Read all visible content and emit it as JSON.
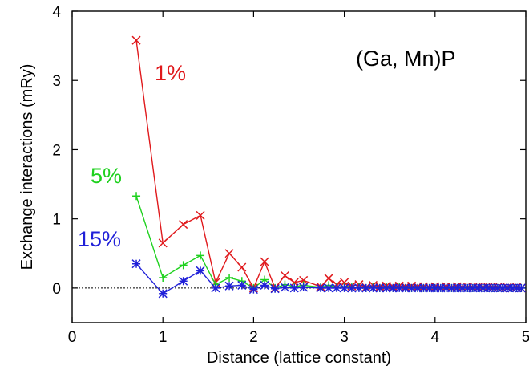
{
  "chart_data": {
    "type": "line",
    "title": "",
    "xlabel": "Distance (lattice constant)",
    "ylabel": "Exchange interactions (mRy)",
    "xlim": [
      0,
      5
    ],
    "ylim": [
      -0.5,
      4
    ],
    "xticks": [
      0,
      1,
      2,
      3,
      4,
      5
    ],
    "yticks": [
      0,
      1,
      2,
      3,
      4
    ],
    "grid": false,
    "zero_line": "dotted",
    "annotations": [
      {
        "text": "(Ga, Mn)P",
        "color": "#000000"
      },
      {
        "text": "1%",
        "color": "#e0191c"
      },
      {
        "text": "5%",
        "color": "#1fd11f"
      },
      {
        "text": "15%",
        "color": "#2020d8"
      }
    ],
    "series": [
      {
        "name": "1%",
        "color": "#e0191c",
        "marker": "x",
        "x": [
          0.707,
          1.0,
          1.225,
          1.414,
          1.581,
          1.732,
          1.871,
          2.0,
          2.121,
          2.236,
          2.345,
          2.449,
          2.55,
          2.739,
          2.828,
          2.915,
          3.0,
          3.082,
          3.162,
          3.24,
          3.317,
          3.391,
          3.464,
          3.536,
          3.606,
          3.674,
          3.742,
          3.808,
          3.873,
          3.937,
          4.0,
          4.062,
          4.123,
          4.183,
          4.243,
          4.301,
          4.359,
          4.416,
          4.472,
          4.528,
          4.583,
          4.637,
          4.69,
          4.743,
          4.796,
          4.848,
          4.899,
          4.95
        ],
        "y": [
          3.58,
          0.65,
          0.92,
          1.05,
          0.08,
          0.5,
          0.3,
          0.0,
          0.38,
          0.0,
          0.18,
          0.08,
          0.11,
          0.02,
          0.14,
          0.05,
          0.08,
          0.03,
          0.05,
          0.01,
          0.04,
          0.02,
          0.03,
          0.02,
          0.03,
          0.02,
          0.03,
          0.02,
          0.02,
          0.01,
          0.02,
          0.01,
          0.02,
          0.01,
          0.02,
          0.01,
          0.01,
          0.01,
          0.01,
          0.01,
          0.01,
          0.01,
          0.01,
          0.0,
          0.01,
          0.0,
          0.01,
          0.0
        ]
      },
      {
        "name": "5%",
        "color": "#1fd11f",
        "marker": "+",
        "x": [
          0.707,
          1.0,
          1.225,
          1.414,
          1.581,
          1.732,
          1.871,
          2.0,
          2.121,
          2.236,
          2.345,
          2.449,
          2.55,
          2.739,
          2.828,
          2.915,
          3.0,
          3.082,
          3.162,
          3.24,
          3.317,
          3.391,
          3.464,
          3.536,
          3.606,
          3.674,
          3.742,
          3.808,
          3.873,
          3.937,
          4.0,
          4.062,
          4.123,
          4.183,
          4.243,
          4.301,
          4.359,
          4.416,
          4.472,
          4.528,
          4.583,
          4.637,
          4.69,
          4.743,
          4.796,
          4.848,
          4.899,
          4.95
        ],
        "y": [
          1.33,
          0.15,
          0.33,
          0.47,
          0.05,
          0.15,
          0.1,
          0.0,
          0.12,
          0.0,
          0.05,
          0.02,
          0.04,
          0.01,
          0.04,
          0.01,
          0.02,
          0.01,
          0.01,
          0.0,
          0.01,
          0.0,
          0.01,
          0.0,
          0.01,
          0.0,
          0.0,
          0.0,
          0.0,
          0.0,
          0.0,
          0.0,
          0.0,
          0.0,
          0.0,
          0.0,
          0.0,
          0.0,
          0.0,
          0.0,
          0.0,
          0.0,
          0.0,
          0.0,
          0.0,
          0.0,
          0.0,
          0.0
        ]
      },
      {
        "name": "15%",
        "color": "#2020d8",
        "marker": "*",
        "x": [
          0.707,
          1.0,
          1.225,
          1.414,
          1.581,
          1.732,
          1.871,
          2.0,
          2.121,
          2.236,
          2.345,
          2.449,
          2.55,
          2.739,
          2.828,
          2.915,
          3.0,
          3.082,
          3.162,
          3.24,
          3.317,
          3.391,
          3.464,
          3.536,
          3.606,
          3.674,
          3.742,
          3.808,
          3.873,
          3.937,
          4.0,
          4.062,
          4.123,
          4.183,
          4.243,
          4.301,
          4.359,
          4.416,
          4.472,
          4.528,
          4.583,
          4.637,
          4.69,
          4.743,
          4.796,
          4.848,
          4.899,
          4.95
        ],
        "y": [
          0.35,
          -0.08,
          0.1,
          0.25,
          0.0,
          0.03,
          0.04,
          -0.02,
          0.04,
          -0.01,
          0.01,
          0.0,
          0.01,
          0.0,
          0.0,
          0.0,
          0.0,
          0.0,
          0.0,
          0.0,
          0.0,
          0.0,
          0.0,
          0.0,
          0.0,
          0.0,
          0.0,
          0.0,
          0.0,
          0.0,
          0.0,
          0.0,
          0.0,
          0.0,
          0.0,
          0.0,
          0.0,
          0.0,
          0.0,
          0.0,
          0.0,
          0.0,
          0.0,
          0.0,
          0.0,
          0.0,
          0.0,
          0.0
        ]
      }
    ]
  }
}
